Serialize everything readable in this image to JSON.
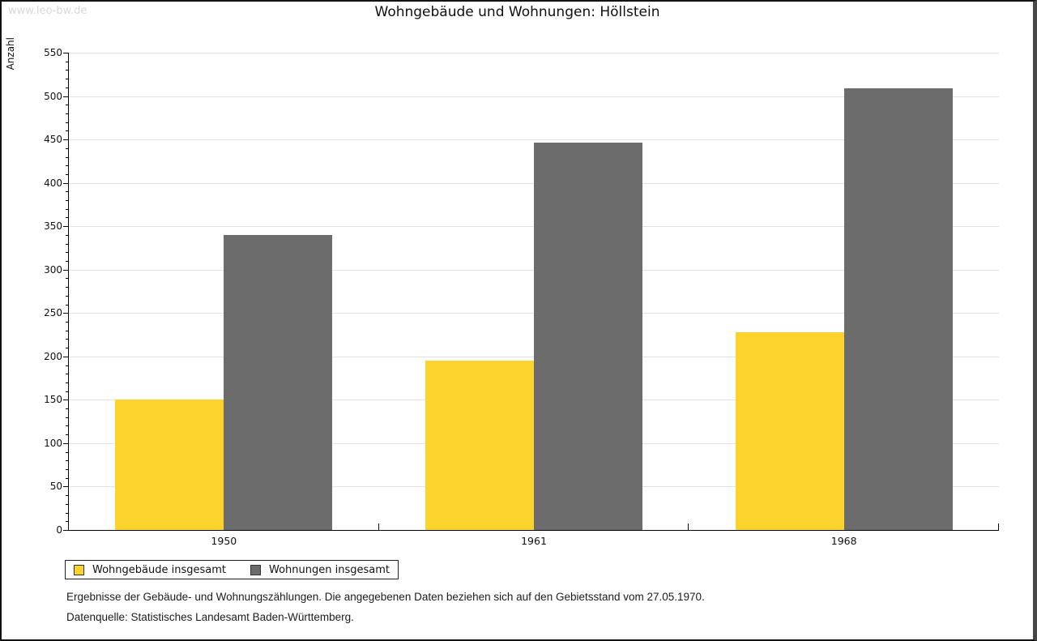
{
  "watermark": "www.leo-bw.de",
  "title": "Wohngebäude und Wohnungen: Höllstein",
  "chart_data": {
    "type": "bar",
    "categories": [
      "1950",
      "1961",
      "1968"
    ],
    "series": [
      {
        "name": "Wohngebäude insgesamt",
        "color": "#fcd32d",
        "values": [
          150,
          195,
          228
        ]
      },
      {
        "name": "Wohnungen insgesamt",
        "color": "#6c6c6c",
        "values": [
          340,
          446,
          509
        ]
      }
    ],
    "title": "Wohngebäude und Wohnungen: Höllstein",
    "xlabel": "",
    "ylabel": "Anzahl",
    "ylim": [
      0,
      550
    ],
    "ytick_step": 50,
    "yminor_step": 10,
    "ytick_labels": [
      "0",
      "50",
      "100",
      "150",
      "200",
      "250",
      "300",
      "350",
      "400",
      "450",
      "500",
      "550"
    ],
    "grid": true,
    "legend_position": "bottom-left"
  },
  "footnotes": {
    "line1": "Ergebnisse der Gebäude- und Wohnungszählungen. Die angegebenen Daten beziehen sich auf den Gebietsstand vom 27.05.1970.",
    "line2": "Datenquelle: Statistisches Landesamt Baden-Württemberg."
  }
}
